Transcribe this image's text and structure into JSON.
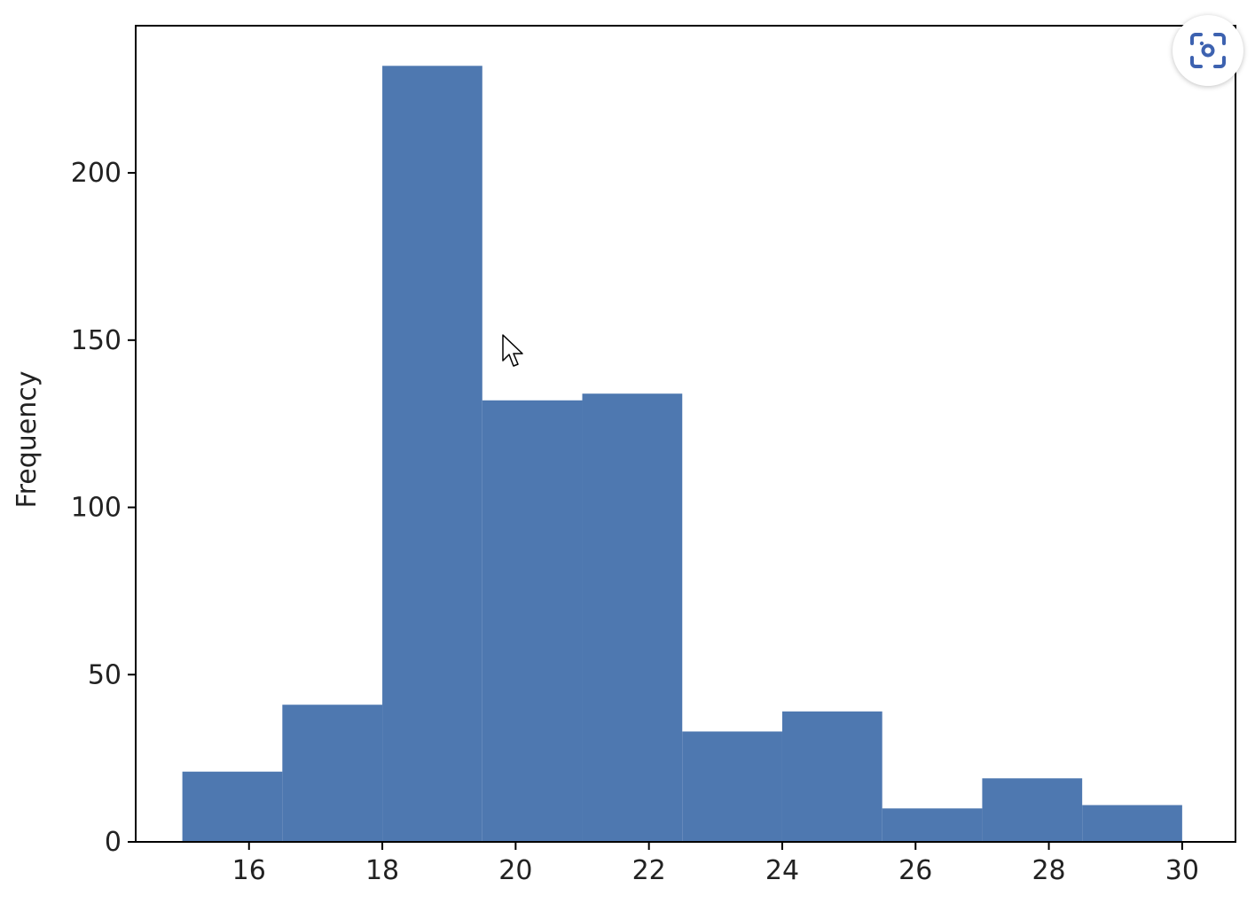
{
  "chart_data": {
    "type": "bar",
    "subtype": "histogram",
    "bin_edges": [
      15,
      16.5,
      18,
      19.5,
      21,
      22.5,
      24,
      25.5,
      27,
      28.5,
      30
    ],
    "values": [
      21,
      41,
      232,
      132,
      134,
      33,
      39,
      10,
      19,
      11
    ],
    "title": "",
    "xlabel": "",
    "ylabel": "Frequency",
    "xlim": [
      14.3,
      30.8
    ],
    "ylim": [
      0,
      244
    ],
    "xticks": [
      16,
      18,
      20,
      22,
      24,
      26,
      28,
      30
    ],
    "yticks": [
      0,
      50,
      100,
      150,
      200
    ],
    "bar_color": "#4e78b0",
    "grid": false,
    "legend": "none"
  },
  "overlay": {
    "screenshot_button_icon": "camera-scan-icon",
    "screenshot_button_color": "#3d62b0",
    "cursor_icon": "mouse-pointer-icon"
  }
}
